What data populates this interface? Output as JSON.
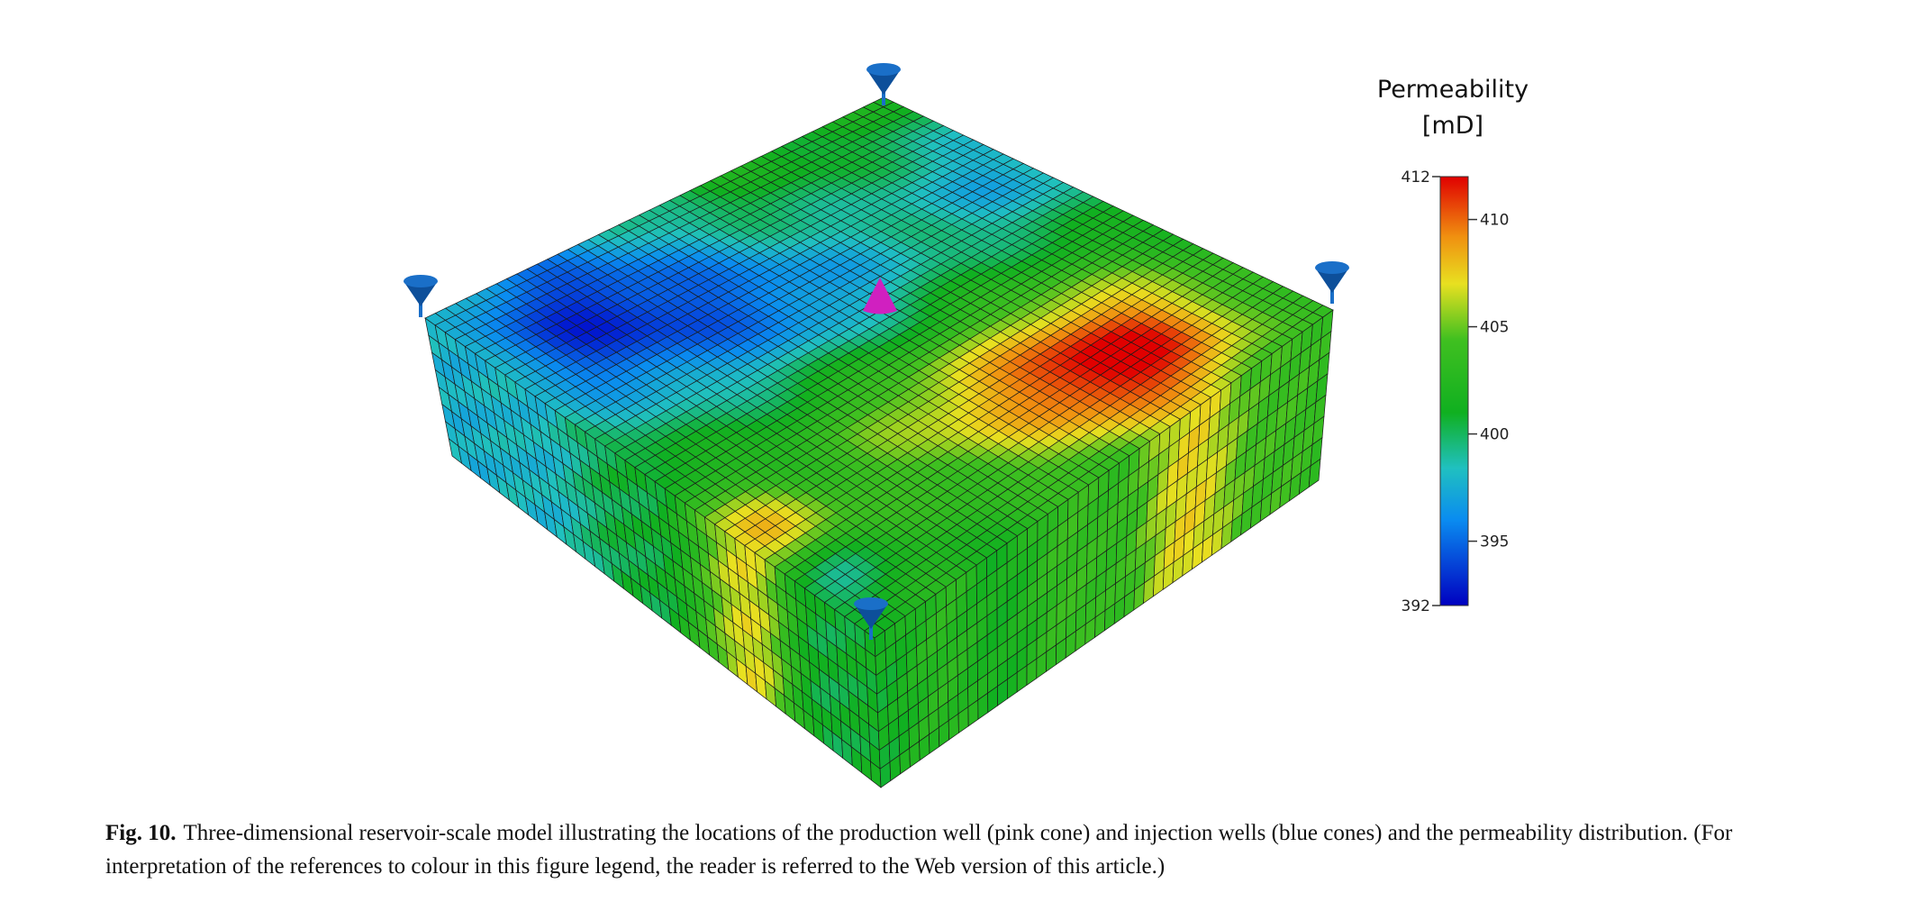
{
  "figure": {
    "colorbar": {
      "title": "Permeability",
      "unit": "[mD]",
      "min": 392,
      "max": 412,
      "ticks": [
        410,
        405,
        400,
        395
      ]
    },
    "caption": {
      "label": "Fig. 10.",
      "text": "Three-dimensional reservoir-scale model illustrating the locations of the production well (pink cone) and injection wells (blue cones) and the permeability distribution. (For interpretation of the references to colour in this figure legend, the reader is referred to the Web version of this article.)"
    }
  }
}
